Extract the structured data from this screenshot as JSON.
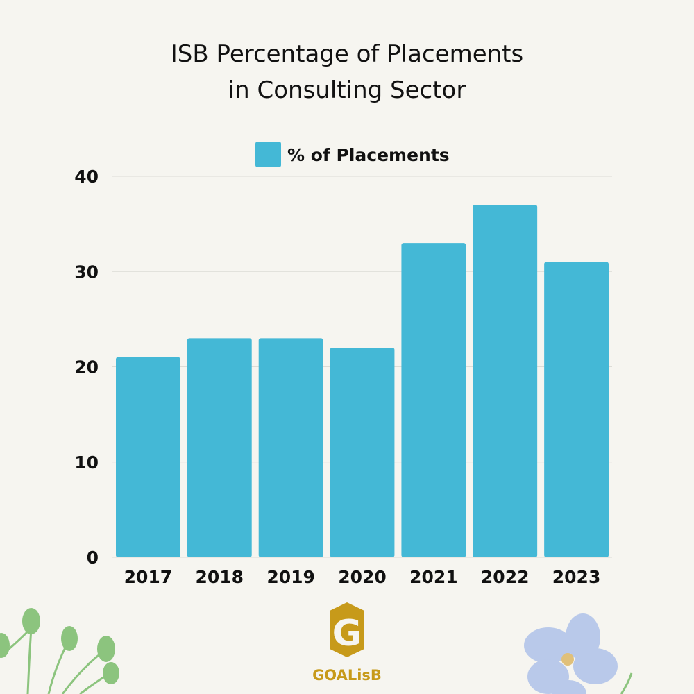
{
  "chart_data": {
    "type": "bar",
    "title": [
      "ISB Percentage of Placements",
      "in Consulting Sector"
    ],
    "categories": [
      "2017",
      "2018",
      "2019",
      "2020",
      "2021",
      "2022",
      "2023"
    ],
    "series": [
      {
        "name": "% of Placements",
        "values": [
          21,
          23,
          23,
          22,
          33,
          37,
          31
        ],
        "color": "#44b8d6"
      }
    ],
    "ylim": [
      0,
      40
    ],
    "yticks": [
      0,
      10,
      20,
      30,
      40
    ],
    "grid": true,
    "legend_position": "top-center"
  },
  "logo": {
    "brand": "GOALisB",
    "letter": "G"
  },
  "colors": {
    "background": "#f6f5f0",
    "bar": "#44b8d6",
    "logo_gold": "#c79a1a",
    "leaf": "#8cc47e",
    "flower": "#b9c9ea"
  }
}
